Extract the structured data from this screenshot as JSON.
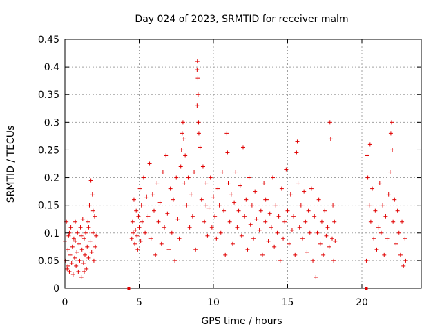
{
  "chart_data": {
    "type": "scatter",
    "title": "Day 024 of 2023, SRMTID for receiver malm",
    "xlabel": "GPS time / hours",
    "ylabel": "SRMTID / TECUs",
    "xlim": [
      0,
      24
    ],
    "ylim": [
      0,
      0.45
    ],
    "grid": true,
    "marker": "+",
    "color": "#e00000",
    "xticks": [
      0,
      5,
      10,
      15,
      20
    ],
    "xtick_labels": [
      "0",
      "5",
      "10",
      "15",
      "20"
    ],
    "yticks": [
      0,
      0.05,
      0.1,
      0.15,
      0.2,
      0.25,
      0.3,
      0.35,
      0.4,
      0.45
    ],
    "ytick_labels": [
      "0",
      "0.05",
      "0.1",
      "0.15",
      "0.2",
      "0.25",
      "0.3",
      "0.35",
      "0.4",
      "0.45"
    ],
    "data_gaps_marked_at_zero": [
      4.3,
      20.3
    ],
    "series": [
      {
        "name": "SRMTID",
        "points": [
          [
            0.0,
            0.085
          ],
          [
            0.05,
            0.05
          ],
          [
            0.1,
            0.12
          ],
          [
            0.15,
            0.035
          ],
          [
            0.2,
            0.07
          ],
          [
            0.25,
            0.095
          ],
          [
            0.3,
            0.03
          ],
          [
            0.35,
            0.06
          ],
          [
            0.4,
            0.11
          ],
          [
            0.45,
            0.045
          ],
          [
            0.5,
            0.075
          ],
          [
            0.55,
            0.025
          ],
          [
            0.6,
            0.09
          ],
          [
            0.65,
            0.055
          ],
          [
            0.7,
            0.12
          ],
          [
            0.75,
            0.04
          ],
          [
            0.8,
            0.065
          ],
          [
            0.85,
            0.1
          ],
          [
            0.9,
            0.03
          ],
          [
            0.95,
            0.08
          ],
          [
            1.0,
            0.05
          ],
          [
            1.05,
            0.11
          ],
          [
            1.1,
            0.02
          ],
          [
            1.15,
            0.07
          ],
          [
            1.2,
            0.125
          ],
          [
            1.25,
            0.045
          ],
          [
            1.3,
            0.09
          ],
          [
            1.35,
            0.06
          ],
          [
            1.4,
            0.1
          ],
          [
            1.45,
            0.035
          ],
          [
            1.5,
            0.075
          ],
          [
            1.55,
            0.12
          ],
          [
            1.6,
            0.055
          ],
          [
            1.65,
            0.15
          ],
          [
            1.7,
            0.085
          ],
          [
            1.75,
            0.195
          ],
          [
            1.8,
            0.065
          ],
          [
            1.85,
            0.17
          ],
          [
            1.9,
            0.1
          ],
          [
            1.95,
            0.05
          ],
          [
            2.0,
            0.13
          ],
          [
            2.05,
            0.075
          ],
          [
            2.1,
            0.095
          ],
          [
            0.3,
            0.1
          ],
          [
            0.7,
            0.085
          ],
          [
            1.1,
            0.095
          ],
          [
            1.6,
            0.11
          ],
          [
            1.9,
            0.14
          ],
          [
            0.2,
            0.04
          ],
          [
            1.3,
            0.03
          ],
          [
            4.5,
            0.09
          ],
          [
            4.55,
            0.12
          ],
          [
            4.6,
            0.1
          ],
          [
            4.65,
            0.16
          ],
          [
            4.7,
            0.08
          ],
          [
            4.75,
            0.105
          ],
          [
            4.8,
            0.14
          ],
          [
            4.85,
            0.095
          ],
          [
            4.9,
            0.07
          ],
          [
            4.95,
            0.13
          ],
          [
            5.0,
            0.11
          ],
          [
            5.05,
            0.18
          ],
          [
            5.1,
            0.085
          ],
          [
            5.15,
            0.15
          ],
          [
            5.2,
            0.12
          ],
          [
            5.3,
            0.2
          ],
          [
            5.4,
            0.1
          ],
          [
            5.5,
            0.165
          ],
          [
            5.6,
            0.13
          ],
          [
            5.7,
            0.225
          ],
          [
            5.8,
            0.09
          ],
          [
            5.9,
            0.17
          ],
          [
            6.0,
            0.14
          ],
          [
            6.1,
            0.06
          ],
          [
            6.2,
            0.19
          ],
          [
            6.3,
            0.12
          ],
          [
            6.4,
            0.155
          ],
          [
            6.5,
            0.08
          ],
          [
            6.6,
            0.21
          ],
          [
            6.7,
            0.11
          ],
          [
            6.8,
            0.24
          ],
          [
            6.9,
            0.135
          ],
          [
            7.0,
            0.07
          ],
          [
            7.1,
            0.18
          ],
          [
            7.2,
            0.1
          ],
          [
            7.3,
            0.16
          ],
          [
            7.4,
            0.05
          ],
          [
            7.5,
            0.2
          ],
          [
            7.6,
            0.125
          ],
          [
            7.7,
            0.09
          ],
          [
            7.8,
            0.22
          ],
          [
            7.85,
            0.25
          ],
          [
            7.9,
            0.28
          ],
          [
            7.95,
            0.3
          ],
          [
            8.0,
            0.27
          ],
          [
            8.05,
            0.19
          ],
          [
            8.1,
            0.24
          ],
          [
            8.2,
            0.15
          ],
          [
            8.3,
            0.2
          ],
          [
            8.4,
            0.11
          ],
          [
            8.5,
            0.17
          ],
          [
            8.6,
            0.13
          ],
          [
            8.7,
            0.21
          ],
          [
            8.8,
            0.07
          ],
          [
            8.9,
            0.395
          ],
          [
            8.92,
            0.41
          ],
          [
            8.95,
            0.38
          ],
          [
            8.97,
            0.35
          ],
          [
            8.9,
            0.33
          ],
          [
            9.0,
            0.3
          ],
          [
            9.02,
            0.28
          ],
          [
            9.1,
            0.255
          ],
          [
            9.2,
            0.16
          ],
          [
            9.3,
            0.22
          ],
          [
            9.4,
            0.12
          ],
          [
            9.5,
            0.19
          ],
          [
            9.6,
            0.095
          ],
          [
            9.7,
            0.145
          ],
          [
            9.8,
            0.2
          ],
          [
            9.9,
            0.11
          ],
          [
            10.0,
            0.165
          ],
          [
            10.1,
            0.13
          ],
          [
            10.2,
            0.09
          ],
          [
            10.3,
            0.18
          ],
          [
            10.4,
            0.15
          ],
          [
            10.5,
            0.1
          ],
          [
            10.6,
            0.21
          ],
          [
            10.7,
            0.14
          ],
          [
            10.8,
            0.06
          ],
          [
            10.9,
            0.28
          ],
          [
            10.95,
            0.245
          ],
          [
            11.0,
            0.19
          ],
          [
            11.1,
            0.12
          ],
          [
            11.2,
            0.17
          ],
          [
            11.3,
            0.08
          ],
          [
            11.4,
            0.155
          ],
          [
            11.5,
            0.21
          ],
          [
            11.6,
            0.11
          ],
          [
            11.7,
            0.14
          ],
          [
            11.8,
            0.185
          ],
          [
            11.9,
            0.095
          ],
          [
            12.0,
            0.255
          ],
          [
            12.1,
            0.13
          ],
          [
            12.2,
            0.16
          ],
          [
            12.3,
            0.07
          ],
          [
            12.4,
            0.2
          ],
          [
            12.5,
            0.115
          ],
          [
            12.6,
            0.15
          ],
          [
            12.7,
            0.09
          ],
          [
            12.8,
            0.175
          ],
          [
            12.9,
            0.125
          ],
          [
            13.0,
            0.23
          ],
          [
            13.1,
            0.105
          ],
          [
            13.2,
            0.14
          ],
          [
            13.3,
            0.06
          ],
          [
            13.4,
            0.19
          ],
          [
            13.5,
            0.12
          ],
          [
            13.6,
            0.16
          ],
          [
            13.7,
            0.085
          ],
          [
            13.8,
            0.135
          ],
          [
            13.9,
            0.11
          ],
          [
            14.0,
            0.2
          ],
          [
            14.1,
            0.075
          ],
          [
            14.2,
            0.15
          ],
          [
            14.3,
            0.1
          ],
          [
            14.4,
            0.13
          ],
          [
            14.5,
            0.05
          ],
          [
            14.6,
            0.18
          ],
          [
            14.7,
            0.09
          ],
          [
            14.8,
            0.12
          ],
          [
            14.9,
            0.215
          ],
          [
            15.0,
            0.14
          ],
          [
            15.1,
            0.08
          ],
          [
            15.2,
            0.17
          ],
          [
            15.3,
            0.105
          ],
          [
            15.4,
            0.13
          ],
          [
            15.5,
            0.06
          ],
          [
            15.6,
            0.245
          ],
          [
            15.65,
            0.265
          ],
          [
            15.7,
            0.19
          ],
          [
            15.8,
            0.11
          ],
          [
            15.9,
            0.15
          ],
          [
            16.0,
            0.09
          ],
          [
            16.1,
            0.175
          ],
          [
            16.2,
            0.12
          ],
          [
            16.3,
            0.065
          ],
          [
            16.4,
            0.14
          ],
          [
            16.5,
            0.1
          ],
          [
            16.6,
            0.18
          ],
          [
            16.7,
            0.05
          ],
          [
            16.8,
            0.13
          ],
          [
            16.9,
            0.02
          ],
          [
            17.0,
            0.1
          ],
          [
            17.1,
            0.16
          ],
          [
            17.2,
            0.08
          ],
          [
            17.3,
            0.12
          ],
          [
            17.4,
            0.06
          ],
          [
            17.5,
            0.14
          ],
          [
            17.6,
            0.095
          ],
          [
            17.7,
            0.11
          ],
          [
            17.8,
            0.075
          ],
          [
            17.85,
            0.3
          ],
          [
            17.9,
            0.27
          ],
          [
            18.0,
            0.09
          ],
          [
            18.05,
            0.15
          ],
          [
            18.1,
            0.05
          ],
          [
            18.15,
            0.12
          ],
          [
            18.2,
            0.085
          ],
          [
            9.5,
            0.15
          ],
          [
            13.5,
            0.16
          ],
          [
            20.3,
            0.05
          ],
          [
            20.35,
            0.24
          ],
          [
            20.4,
            0.2
          ],
          [
            20.5,
            0.15
          ],
          [
            20.55,
            0.26
          ],
          [
            20.6,
            0.12
          ],
          [
            20.7,
            0.18
          ],
          [
            20.8,
            0.09
          ],
          [
            20.9,
            0.14
          ],
          [
            21.0,
            0.07
          ],
          [
            21.1,
            0.11
          ],
          [
            21.2,
            0.19
          ],
          [
            21.3,
            0.1
          ],
          [
            21.4,
            0.15
          ],
          [
            21.5,
            0.06
          ],
          [
            21.6,
            0.13
          ],
          [
            21.7,
            0.09
          ],
          [
            21.8,
            0.17
          ],
          [
            21.9,
            0.21
          ],
          [
            21.95,
            0.28
          ],
          [
            22.0,
            0.3
          ],
          [
            22.05,
            0.25
          ],
          [
            22.1,
            0.12
          ],
          [
            22.2,
            0.16
          ],
          [
            22.3,
            0.08
          ],
          [
            22.4,
            0.14
          ],
          [
            22.5,
            0.1
          ],
          [
            22.6,
            0.06
          ],
          [
            22.7,
            0.12
          ],
          [
            22.8,
            0.04
          ],
          [
            22.9,
            0.09
          ],
          [
            22.95,
            0.05
          ]
        ]
      }
    ]
  }
}
